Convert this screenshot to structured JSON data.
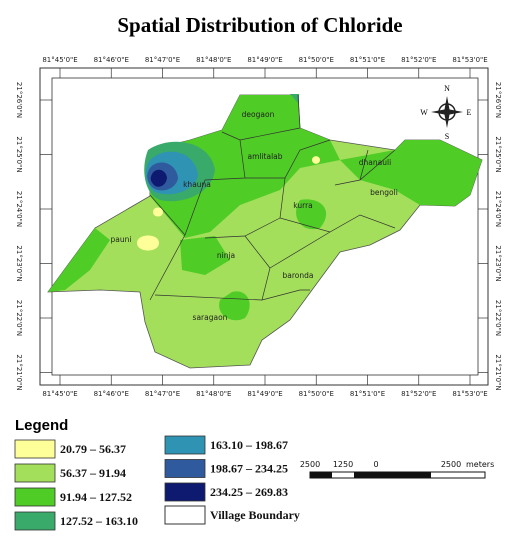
{
  "title": "Spatial Distribution of Chloride",
  "axes": {
    "longitudes": [
      "81°45'0\"E",
      "81°46'0\"E",
      "81°47'0\"E",
      "81°48'0\"E",
      "81°49'0\"E",
      "81°50'0\"E",
      "81°51'0\"E",
      "81°52'0\"E",
      "81°53'0\"E"
    ],
    "latitudes": [
      "21°26'0\"N",
      "21°25'0\"N",
      "21°24'0\"N",
      "21°23'0\"N",
      "21°22'0\"N",
      "21°21'0\"N"
    ]
  },
  "villages": [
    "deogaon",
    "amlitalab",
    "dhanauli",
    "khauna",
    "kurra",
    "bengoli",
    "pauni",
    "ninja",
    "baronda",
    "saragaon"
  ],
  "compass": {
    "n": "N",
    "e": "E",
    "s": "S",
    "w": "W"
  },
  "legend": {
    "title": "Legend",
    "classes": [
      {
        "label": "20.79 – 56.37",
        "color": "#ffff99"
      },
      {
        "label": "56.37 – 91.94",
        "color": "#a3df5a"
      },
      {
        "label": "91.94 – 127.52",
        "color": "#4fcc26"
      },
      {
        "label": "127.52 – 163.10",
        "color": "#3aaa6a"
      },
      {
        "label": "163.10 – 198.67",
        "color": "#2f93b4"
      },
      {
        "label": "198.67 – 234.25",
        "color": "#2f5a9e"
      },
      {
        "label": "234.25 – 269.83",
        "color": "#0e1a70"
      }
    ],
    "boundary": "Village Boundary"
  },
  "scale": {
    "labels": [
      "2500",
      "1250",
      "0",
      "2500"
    ],
    "unit": "meters"
  }
}
